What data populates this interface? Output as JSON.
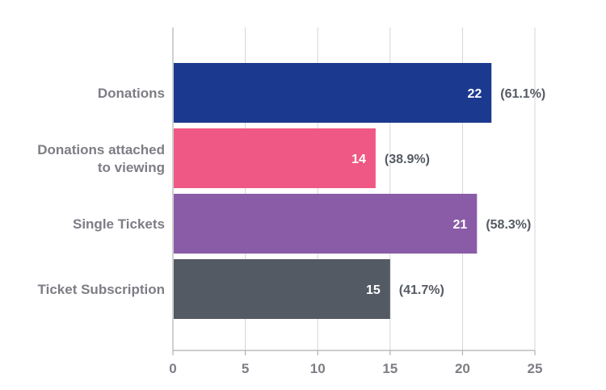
{
  "chart_data": {
    "type": "bar",
    "orientation": "horizontal",
    "categories": [
      [
        "Donations"
      ],
      [
        "Donations attached",
        "to viewing"
      ],
      [
        "Single Tickets"
      ],
      [
        "Ticket Subscription"
      ]
    ],
    "values": [
      22,
      14,
      21,
      15
    ],
    "percent_labels": [
      "(61.1%)",
      "(38.9%)",
      "(58.3%)",
      "(41.7%)"
    ],
    "colors": [
      "#1b3a8f",
      "#ef5884",
      "#8a5ca8",
      "#545a63"
    ],
    "xlim": [
      0,
      25
    ],
    "xticks": [
      0,
      5,
      10,
      15,
      20,
      25
    ],
    "grid": true
  }
}
